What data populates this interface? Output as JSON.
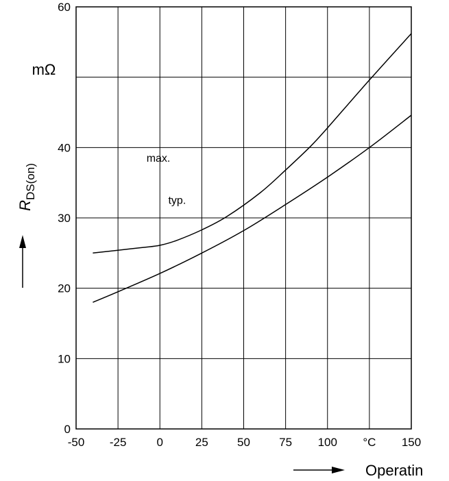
{
  "chart_data": {
    "type": "line",
    "title": "",
    "xlabel": "Operatin",
    "x_unit": "°C",
    "ylabel_main": "R",
    "ylabel_sub": "DS(on)",
    "y_unit": "mΩ",
    "xlim": [
      -50,
      150
    ],
    "ylim": [
      0,
      60
    ],
    "x_ticks": [
      "-50",
      "-25",
      "0",
      "25",
      "50",
      "75",
      "100",
      "°C",
      "150"
    ],
    "y_ticks": [
      "0",
      "10",
      "20",
      "30",
      "40",
      "",
      "60"
    ],
    "grid": true,
    "series": [
      {
        "name": "max.",
        "x": [
          -40,
          -25,
          -10,
          0,
          10,
          25,
          40,
          60,
          75,
          90,
          100,
          125,
          150
        ],
        "y": [
          25,
          25.4,
          25.8,
          26.1,
          26.8,
          28.3,
          30.2,
          33.6,
          36.8,
          40.2,
          42.8,
          49.6,
          56.2
        ]
      },
      {
        "name": "typ.",
        "x": [
          -40,
          -25,
          0,
          25,
          50,
          75,
          100,
          125,
          150
        ],
        "y": [
          18,
          19.5,
          22.1,
          25,
          28.2,
          31.9,
          35.8,
          40,
          44.6
        ]
      }
    ]
  }
}
